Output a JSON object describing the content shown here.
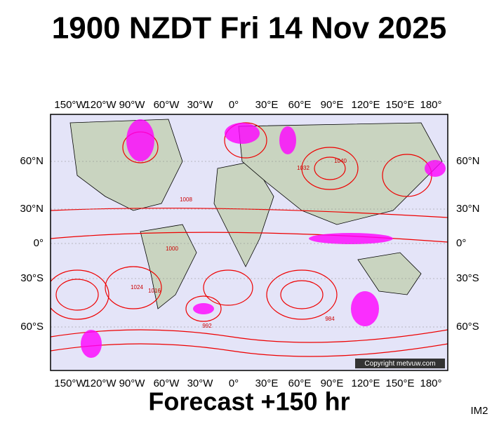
{
  "header": {
    "title": "1900 NZDT Fri 14 Nov 2025"
  },
  "map": {
    "longitude_labels": [
      "150°W",
      "120°W",
      "90°W",
      "60°W",
      "30°W",
      "0°",
      "30°E",
      "60°E",
      "90°E",
      "120°E",
      "150°E",
      "180°"
    ],
    "latitude_labels": [
      "60°N",
      "30°N",
      "0°",
      "30°S",
      "60°S"
    ],
    "isobar_labels": [
      "1016",
      "1024",
      "1000",
      "992",
      "1040",
      "1032",
      "1008",
      "984"
    ],
    "copyright": "Copyright metvuw.com"
  },
  "footer": {
    "forecast": "Forecast +150 hr",
    "code": "IM2"
  }
}
